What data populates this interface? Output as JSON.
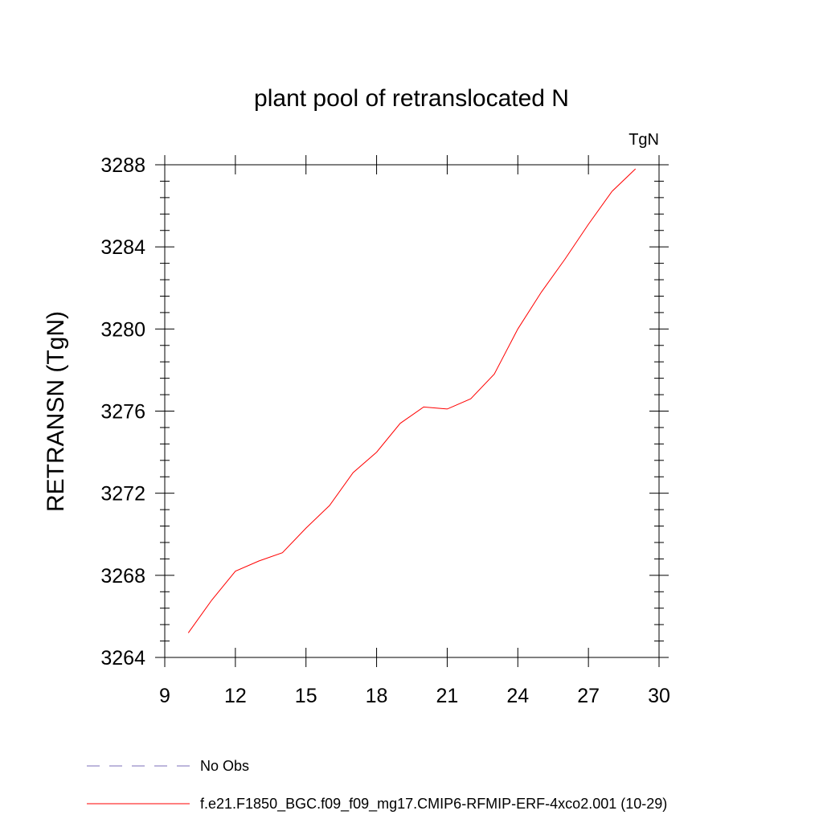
{
  "chart_data": {
    "type": "line",
    "title": "plant pool of retranslocated N",
    "units_label": "TgN",
    "xlabel": "",
    "ylabel": "RETRANSN  (TgN)",
    "xlim": [
      9,
      30
    ],
    "ylim": [
      3264,
      3288
    ],
    "xticks": [
      9,
      12,
      15,
      18,
      21,
      24,
      27,
      30
    ],
    "yticks": [
      3264,
      3268,
      3272,
      3276,
      3280,
      3284,
      3288
    ],
    "grid": false,
    "legend_position": "bottom-left",
    "series": [
      {
        "name": "f.e21.F1850_BGC.f09_f09_mg17.CMIP6-RFMIP-ERF-4xco2.001 (10-29)",
        "color": "#ff0000",
        "style": "solid",
        "x": [
          10,
          11,
          12,
          13,
          14,
          15,
          16,
          17,
          18,
          19,
          20,
          21,
          22,
          23,
          24,
          25,
          26,
          27,
          28,
          29
        ],
        "y": [
          3265.2,
          3266.8,
          3268.2,
          3268.7,
          3269.1,
          3270.3,
          3271.4,
          3273.0,
          3274.0,
          3275.4,
          3276.2,
          3276.1,
          3276.6,
          3277.8,
          3280.0,
          3281.8,
          3283.4,
          3285.1,
          3286.7,
          3287.8
        ]
      }
    ],
    "legend": [
      {
        "label": "No Obs",
        "color": "#7b6fb8",
        "style": "dashed"
      },
      {
        "label": "f.e21.F1850_BGC.f09_f09_mg17.CMIP6-RFMIP-ERF-4xco2.001 (10-29)",
        "color": "#ff0000",
        "style": "solid"
      }
    ]
  }
}
